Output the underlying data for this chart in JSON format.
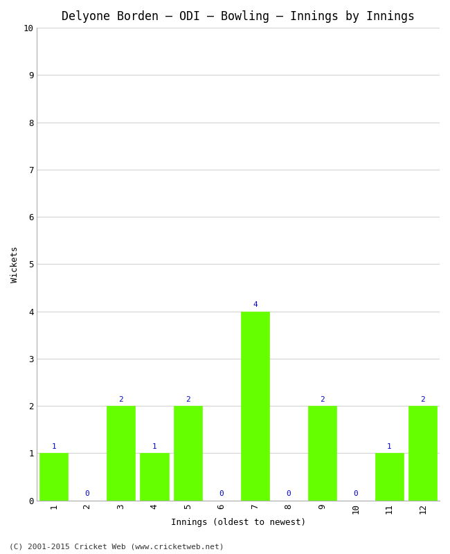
{
  "title": "Delyone Borden – ODI – Bowling – Innings by Innings",
  "xlabel": "Innings (oldest to newest)",
  "ylabel": "Wickets",
  "innings": [
    1,
    2,
    3,
    4,
    5,
    6,
    7,
    8,
    9,
    10,
    11,
    12
  ],
  "wickets": [
    1,
    0,
    2,
    1,
    2,
    0,
    4,
    0,
    2,
    0,
    1,
    2
  ],
  "bar_color": "#66ff00",
  "bar_edge_color": "#66ff00",
  "label_color": "#0000cc",
  "ylim": [
    0,
    10
  ],
  "yticks": [
    0,
    1,
    2,
    3,
    4,
    5,
    6,
    7,
    8,
    9,
    10
  ],
  "background_color": "#ffffff",
  "grid_color": "#d3d3d3",
  "title_fontsize": 12,
  "axis_fontsize": 9,
  "label_fontsize": 8,
  "footer": "(C) 2001-2015 Cricket Web (www.cricketweb.net)"
}
